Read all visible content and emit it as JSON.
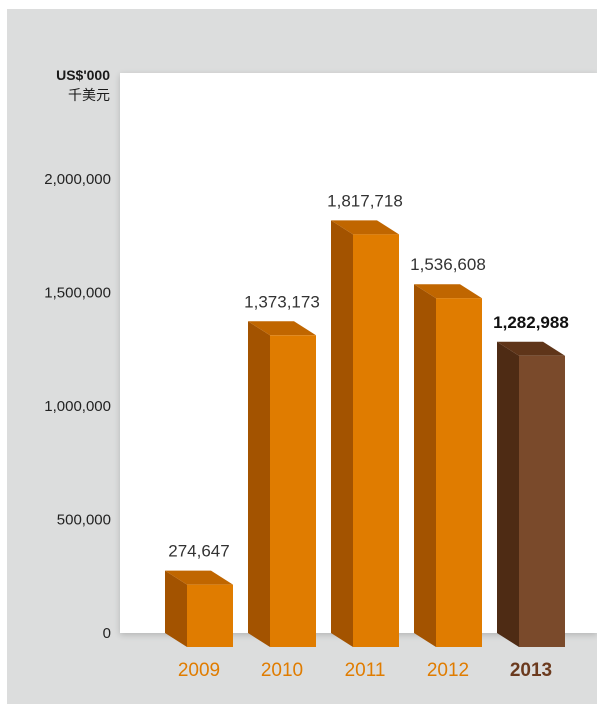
{
  "units": {
    "en": "US$'000",
    "zh": "千美元"
  },
  "colors": {
    "frame": "#dcdddd",
    "bar_front": "#e07c00",
    "bar_side": "#a35300",
    "bar_top": "#c06600",
    "highlight_front": "#7a4a2b",
    "highlight_side": "#4e2b14",
    "highlight_top": "#5f3519",
    "year_text": "#e07c00",
    "highlight_text": "#6b3a1e",
    "value_text": "#333333"
  },
  "chart_data": {
    "type": "bar",
    "categories": [
      "2009",
      "2010",
      "2011",
      "2012",
      "2013"
    ],
    "values": [
      274647,
      1373173,
      1817718,
      1536608,
      1282988
    ],
    "value_labels": [
      "274,647",
      "1,373,173",
      "1,817,718",
      "1,536,608",
      "1,282,988"
    ],
    "highlight_index": 4,
    "ylabel": "US$'000 千美元",
    "yticks": [
      0,
      500000,
      1000000,
      1500000,
      2000000
    ],
    "ytick_labels": [
      "0",
      "500,000",
      "1,000,000",
      "1,500,000",
      "2,000,000"
    ],
    "ylim": [
      0,
      2000000
    ],
    "grid": false,
    "style": "3d-bar"
  }
}
